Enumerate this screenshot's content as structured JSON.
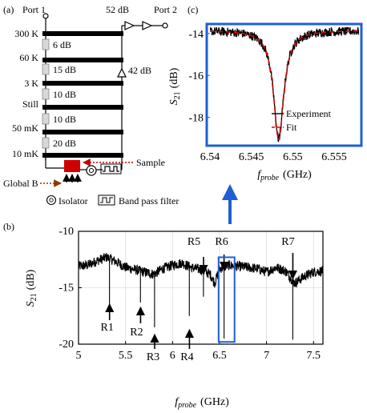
{
  "panel_a": {
    "label": "(a)",
    "port1": "Port 1",
    "port2": "Port 2",
    "amp_top": "52 dB",
    "amp_mid": "42 dB",
    "stages": [
      {
        "name": "300 K",
        "atten": "6 dB"
      },
      {
        "name": "60 K",
        "atten": "15 dB"
      },
      {
        "name": "3 K",
        "atten": "10 dB"
      },
      {
        "name": "Still",
        "atten": "10 dB"
      },
      {
        "name": "50 mK",
        "atten": "20 dB"
      },
      {
        "name": "10 mK",
        "atten": ""
      }
    ],
    "sample": "Sample",
    "global_b": "Global B",
    "isolator": "Isolator",
    "bandpass": "Band pass filter",
    "colors": {
      "sample": "#d00000",
      "sample_arrow": "#c00000",
      "field_arrow": "#8b3a00"
    }
  },
  "panel_b_label": "(b)",
  "panel_c_label": "(c)",
  "chart_data": [
    {
      "id": "b",
      "type": "line",
      "xlabel_main": "f",
      "xlabel_sub": "probe",
      "xlabel_unit": "(GHz)",
      "ylabel_main": "S",
      "ylabel_sub": "21",
      "ylabel_unit": "(dB)",
      "xlim": [
        5,
        7.6
      ],
      "ylim": [
        -20,
        -10
      ],
      "xticks": [
        5,
        5.5,
        6,
        6.5,
        7,
        7.5
      ],
      "xtick_labels": [
        "5",
        "5.5",
        "6",
        "6.5",
        "7",
        "7.5"
      ],
      "yticks": [
        -20,
        -15,
        -10
      ],
      "ytick_labels": [
        "-20",
        "-15",
        "-10"
      ],
      "grid": true,
      "baseline": [
        [
          5.0,
          -13.1
        ],
        [
          5.1,
          -13.0
        ],
        [
          5.2,
          -12.6
        ],
        [
          5.3,
          -12.3
        ],
        [
          5.4,
          -12.7
        ],
        [
          5.5,
          -13.2
        ],
        [
          5.6,
          -13.4
        ],
        [
          5.7,
          -13.6
        ],
        [
          5.8,
          -13.8
        ],
        [
          5.9,
          -13.3
        ],
        [
          6.0,
          -13.0
        ],
        [
          6.1,
          -12.8
        ],
        [
          6.2,
          -13.2
        ],
        [
          6.3,
          -13.4
        ],
        [
          6.4,
          -13.8
        ],
        [
          6.45,
          -14.6
        ],
        [
          6.5,
          -13.3
        ],
        [
          6.6,
          -13.0
        ],
        [
          6.7,
          -13.1
        ],
        [
          6.8,
          -13.2
        ],
        [
          6.9,
          -13.3
        ],
        [
          7.0,
          -13.6
        ],
        [
          7.1,
          -13.2
        ],
        [
          7.2,
          -13.5
        ],
        [
          7.3,
          -14.6
        ],
        [
          7.4,
          -14.0
        ],
        [
          7.5,
          -13.6
        ],
        [
          7.6,
          -13.5
        ]
      ],
      "resonances": [
        {
          "label": "R1",
          "f": 5.33,
          "depth": -16.5
        },
        {
          "label": "R2",
          "f": 5.66,
          "depth": -16.3
        },
        {
          "label": "R3",
          "f": 5.81,
          "depth": -18.5
        },
        {
          "label": "R4",
          "f": 6.18,
          "depth": -17.5
        },
        {
          "label": "R5",
          "f": 6.33,
          "depth": -15.8
        },
        {
          "label": "R6",
          "f": 6.548,
          "depth": -19.5
        },
        {
          "label": "R7",
          "f": 7.28,
          "depth": -19.6
        }
      ],
      "highlight": {
        "x": [
          6.49,
          6.66
        ],
        "y": [
          -19.8,
          -12.3
        ],
        "color": "#1f5fd6"
      }
    },
    {
      "id": "c",
      "type": "line",
      "xlabel_main": "f",
      "xlabel_sub": "probe",
      "xlabel_unit": "(GHz)",
      "ylabel_main": "S",
      "ylabel_sub": "21",
      "ylabel_unit": "(dB)",
      "xlim": [
        6.54,
        6.558
      ],
      "ylim": [
        -19.2,
        -13.7
      ],
      "xticks": [
        6.54,
        6.545,
        6.55,
        6.555
      ],
      "xtick_labels": [
        "6.54",
        "6.545",
        "6.55",
        "6.555"
      ],
      "yticks": [
        -18,
        -16,
        -14
      ],
      "ytick_labels": [
        "-18",
        "-16",
        "-14"
      ],
      "series": [
        {
          "name": "Experiment",
          "color": "#000000",
          "style": "solid"
        },
        {
          "name": "Fit",
          "color": "#e00000",
          "style": "dashed"
        }
      ],
      "fit": {
        "f0": 6.5483,
        "baseline": -13.85,
        "depth": 5.2,
        "gamma": 0.00075
      },
      "legend": "bottom-right",
      "frame_color": "#1f5fd6"
    }
  ]
}
